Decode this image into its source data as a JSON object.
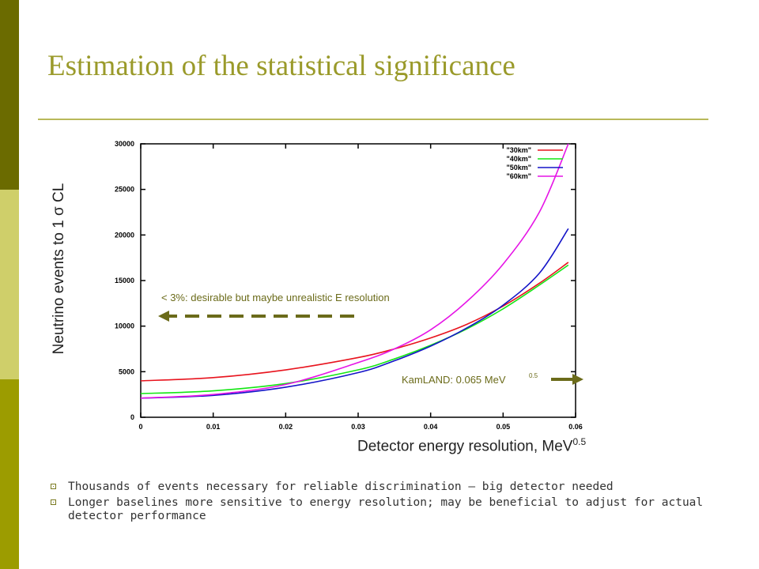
{
  "slide": {
    "title": "Estimation of the statistical significance",
    "bullets": [
      "Thousands of events necessary for reliable discrimination – big detector needed",
      "Longer baselines more sensitive to energy resolution; may be beneficial to adjust for actual detector performance"
    ],
    "sidebar_colors": [
      "#6b6b00",
      "#cfcf6a",
      "#9c9c00"
    ],
    "accent_color": "#9a9a2a"
  },
  "chart_data": {
    "type": "line",
    "xlabel": "Detector energy resolution, MeV",
    "xlabel_sup": "0.5",
    "ylabel": "Neutrino events to 1 σ CL",
    "xlim": [
      0,
      0.06
    ],
    "ylim": [
      0,
      30000
    ],
    "xticks": [
      "0",
      "0.01",
      "0.02",
      "0.03",
      "0.04",
      "0.05",
      "0.06"
    ],
    "yticks": [
      "0",
      "5000",
      "10000",
      "15000",
      "20000",
      "25000",
      "30000"
    ],
    "legend_position": "top-right",
    "series": [
      {
        "name": "\"30km\"",
        "color": "#e8141e",
        "x": [
          0.0,
          0.01,
          0.02,
          0.03,
          0.035,
          0.04,
          0.045,
          0.05,
          0.055,
          0.059
        ],
        "y": [
          4000,
          4350,
          5200,
          6550,
          7500,
          8700,
          10200,
          12200,
          14700,
          17000
        ]
      },
      {
        "name": "\"40km\"",
        "color": "#14e614",
        "x": [
          0.0,
          0.01,
          0.02,
          0.03,
          0.035,
          0.04,
          0.045,
          0.05,
          0.055,
          0.059
        ],
        "y": [
          2600,
          2900,
          3700,
          5200,
          6400,
          7900,
          9700,
          11900,
          14500,
          16700
        ]
      },
      {
        "name": "\"50km\"",
        "color": "#1414c8",
        "x": [
          0.0,
          0.01,
          0.02,
          0.03,
          0.035,
          0.04,
          0.045,
          0.05,
          0.055,
          0.059
        ],
        "y": [
          2100,
          2400,
          3300,
          4900,
          6200,
          7800,
          9800,
          12300,
          15800,
          20700
        ]
      },
      {
        "name": "\"60km\"",
        "color": "#e614e6",
        "x": [
          0.0,
          0.01,
          0.02,
          0.03,
          0.035,
          0.04,
          0.045,
          0.05,
          0.055,
          0.059
        ],
        "y": [
          2100,
          2500,
          3600,
          6000,
          7500,
          9600,
          12700,
          16800,
          22500,
          30000
        ]
      }
    ],
    "annotations": [
      {
        "text": "< 3%: desirable but maybe unrealistic E resolution",
        "color": "#6b6b1a"
      },
      {
        "text": "KamLAND: 0.065 MeV",
        "sup": "0.5",
        "color": "#6b6b1a"
      }
    ]
  }
}
